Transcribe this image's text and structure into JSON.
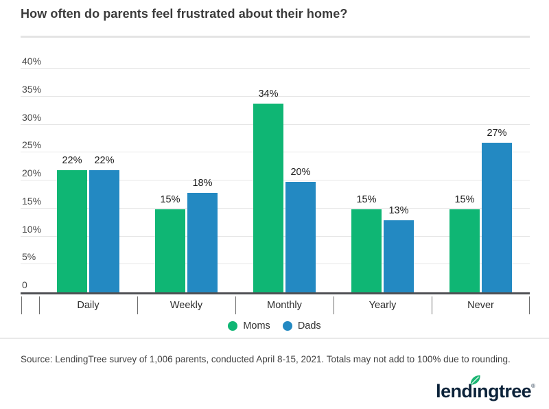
{
  "page": {
    "title": "How often do parents feel frustrated about their home?"
  },
  "chart_data": {
    "type": "bar",
    "title": "How often do parents feel frustrated about their home?",
    "categories": [
      "Daily",
      "Weekly",
      "Monthly",
      "Yearly",
      "Never"
    ],
    "series": [
      {
        "name": "Moms",
        "color": "#0fb674",
        "values": [
          22,
          15,
          34,
          15,
          15
        ]
      },
      {
        "name": "Dads",
        "color": "#2389c2",
        "values": [
          22,
          18,
          20,
          13,
          27
        ]
      }
    ],
    "value_suffix": "%",
    "xlabel": "",
    "ylabel": "",
    "ylim": [
      0,
      40
    ],
    "yticks": [
      0,
      5,
      10,
      15,
      20,
      25,
      30,
      35,
      40
    ],
    "grid": true,
    "legend_position": "bottom"
  },
  "footer": {
    "source": "Source: LendingTree survey of 1,006 parents, conducted April 8-15, 2021. Totals may not add to 100% due to rounding.",
    "logo_text": "lendingtree",
    "logo_reg": "®"
  },
  "colors": {
    "moms": "#0fb674",
    "dads": "#2389c2",
    "leaf": "#1cb573",
    "logo_navy": "#0b2239",
    "axis": "#4f5054",
    "gridline": "#e6e6e6"
  }
}
